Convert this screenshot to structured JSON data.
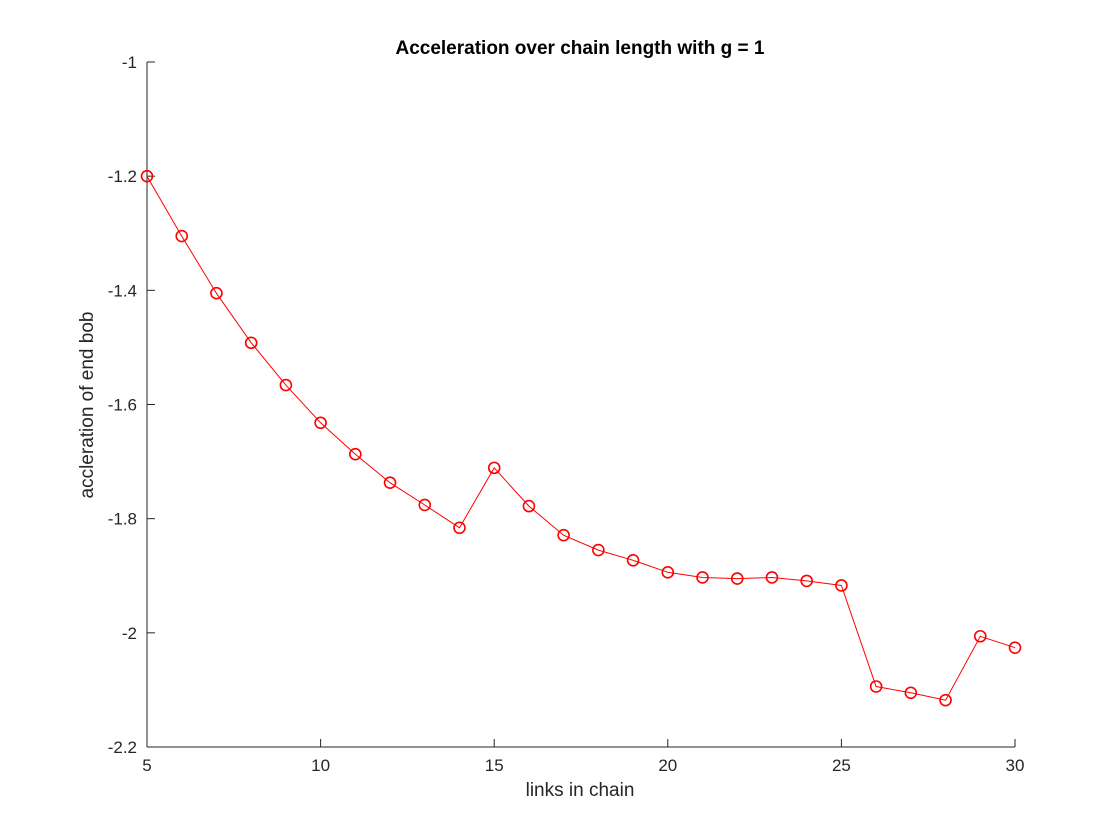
{
  "chart_data": {
    "type": "line",
    "title": "Acceleration over chain length with g = 1",
    "xlabel": "links in chain",
    "ylabel": "accleration of end bob",
    "xlim": [
      5,
      30
    ],
    "ylim": [
      -2.2,
      -1
    ],
    "xticks": [
      5,
      10,
      15,
      20,
      25,
      30
    ],
    "yticks": [
      -2.2,
      -2,
      -1.8,
      -1.6,
      -1.4,
      -1.2,
      -1
    ],
    "xtick_labels": [
      "5",
      "10",
      "15",
      "20",
      "25",
      "30"
    ],
    "ytick_labels": [
      "-2.2",
      "-2",
      "-1.8",
      "-1.6",
      "-1.4",
      "-1.2",
      "-1"
    ],
    "grid": false,
    "colors": {
      "series": "#ff0000",
      "axis": "#262626"
    },
    "marker": "circle",
    "series": [
      {
        "x": [
          5,
          6,
          7,
          8,
          9,
          10,
          11,
          12,
          13,
          14,
          15,
          16,
          17,
          18,
          19,
          20,
          21,
          22,
          23,
          24,
          25,
          26,
          27,
          28,
          29,
          30
        ],
        "y": [
          -1.2,
          -1.305,
          -1.405,
          -1.492,
          -1.566,
          -1.632,
          -1.687,
          -1.737,
          -1.776,
          -1.816,
          -1.711,
          -1.778,
          -1.829,
          -1.855,
          -1.873,
          -1.894,
          -1.903,
          -1.905,
          -1.903,
          -1.909,
          -1.917,
          -2.094,
          -2.105,
          -2.118,
          -2.006,
          -2.026
        ]
      }
    ]
  }
}
